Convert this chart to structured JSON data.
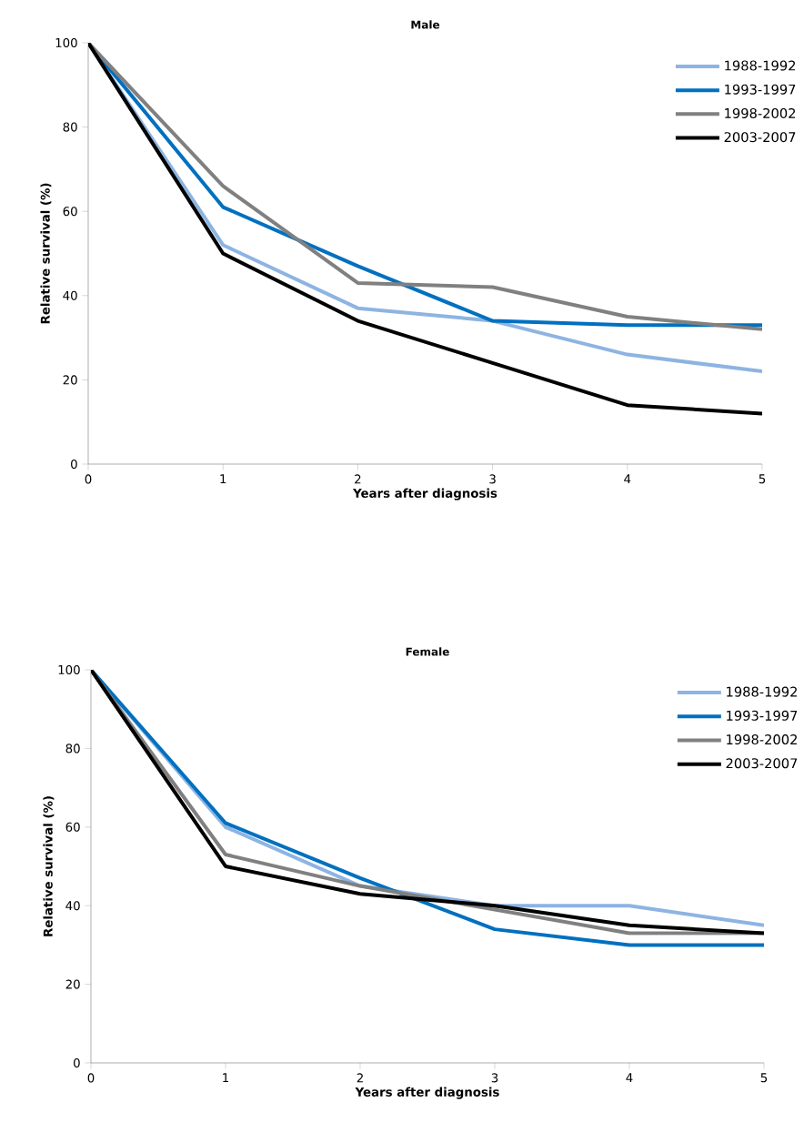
{
  "chart_data": [
    {
      "type": "line",
      "title": "Male",
      "xlabel": "Years after diagnosis",
      "ylabel": "Relative survival (%)",
      "x": [
        0,
        1,
        2,
        3,
        4,
        5
      ],
      "xlim": [
        0,
        5
      ],
      "ylim": [
        0,
        100
      ],
      "xticks": [
        0,
        1,
        2,
        3,
        4,
        5
      ],
      "yticks": [
        0,
        20,
        40,
        60,
        80,
        100
      ],
      "legend": "top right",
      "series": [
        {
          "name": "1988-1992",
          "color": "#8db4e2",
          "values": [
            100,
            52,
            37,
            34,
            26,
            22
          ]
        },
        {
          "name": "1993-1997",
          "color": "#0070c0",
          "values": [
            100,
            61,
            47,
            34,
            33,
            33
          ]
        },
        {
          "name": "1998-2002",
          "color": "#808080",
          "values": [
            100,
            66,
            43,
            42,
            35,
            32
          ]
        },
        {
          "name": "2003-2007",
          "color": "#000000",
          "values": [
            100,
            50,
            34,
            24,
            14,
            12
          ]
        }
      ]
    },
    {
      "type": "line",
      "title": "Female",
      "xlabel": "Years after diagnosis",
      "ylabel": "Relative survival (%)",
      "x": [
        0,
        1,
        2,
        3,
        4,
        5
      ],
      "xlim": [
        0,
        5
      ],
      "ylim": [
        0,
        100
      ],
      "xticks": [
        0,
        1,
        2,
        3,
        4,
        5
      ],
      "yticks": [
        0,
        20,
        40,
        60,
        80,
        100
      ],
      "legend": "top right",
      "series": [
        {
          "name": "1988-1992",
          "color": "#8db4e2",
          "values": [
            100,
            60,
            45,
            40,
            40,
            35
          ]
        },
        {
          "name": "1993-1997",
          "color": "#0070c0",
          "values": [
            100,
            61,
            47,
            34,
            30,
            30
          ]
        },
        {
          "name": "1998-2002",
          "color": "#808080",
          "values": [
            100,
            53,
            45,
            39,
            33,
            33
          ]
        },
        {
          "name": "2003-2007",
          "color": "#000000",
          "values": [
            100,
            50,
            43,
            40,
            35,
            33
          ]
        }
      ]
    }
  ]
}
